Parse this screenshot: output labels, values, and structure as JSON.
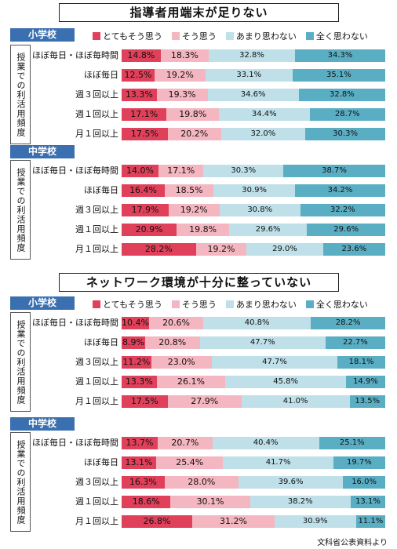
{
  "legend": {
    "labels": [
      "とてもそう思う",
      "そう思う",
      "あまり思わない",
      "全く思わない"
    ],
    "colors": [
      "#e0405a",
      "#f4b6c0",
      "#bfe0e8",
      "#5aaec4"
    ]
  },
  "vertical_label": "授業での利活用頻度",
  "footer": "文科省公表資料より",
  "chart_data": [
    {
      "type": "bar",
      "title": "指導者用端末が足りない",
      "school": "小学校",
      "categories": [
        "ほぼ毎日・ほぼ毎時間",
        "ほぼ毎日",
        "週３回以上",
        "週１回以上",
        "月１回以上"
      ],
      "series": [
        {
          "name": "とてもそう思う",
          "values": [
            14.8,
            12.5,
            13.3,
            17.1,
            17.5
          ]
        },
        {
          "name": "そう思う",
          "values": [
            18.3,
            19.2,
            19.3,
            19.8,
            20.2
          ]
        },
        {
          "name": "あまり思わない",
          "values": [
            32.8,
            33.1,
            34.6,
            34.4,
            32.0
          ]
        },
        {
          "name": "全く思わない",
          "values": [
            34.3,
            35.1,
            32.8,
            28.7,
            30.3
          ]
        }
      ]
    },
    {
      "type": "bar",
      "title": "",
      "school": "中学校",
      "categories": [
        "ほぼ毎日・ほぼ毎時間",
        "ほぼ毎日",
        "週３回以上",
        "週１回以上",
        "月１回以上"
      ],
      "series": [
        {
          "name": "とてもそう思う",
          "values": [
            14.0,
            16.4,
            17.9,
            20.9,
            28.2
          ]
        },
        {
          "name": "そう思う",
          "values": [
            17.1,
            18.5,
            19.2,
            19.8,
            19.2
          ]
        },
        {
          "name": "あまり思わない",
          "values": [
            30.3,
            30.9,
            30.8,
            29.6,
            29.0
          ]
        },
        {
          "name": "全く思わない",
          "values": [
            38.7,
            34.2,
            32.2,
            29.6,
            23.6
          ]
        }
      ]
    },
    {
      "type": "bar",
      "title": "ネットワーク環境が十分に整っていない",
      "school": "小学校",
      "categories": [
        "ほぼ毎日・ほぼ毎時間",
        "ほぼ毎日",
        "週３回以上",
        "週１回以上",
        "月１回以上"
      ],
      "series": [
        {
          "name": "とてもそう思う",
          "values": [
            10.4,
            8.9,
            11.2,
            13.3,
            17.5
          ]
        },
        {
          "name": "そう思う",
          "values": [
            20.6,
            20.8,
            23.0,
            26.1,
            27.9
          ]
        },
        {
          "name": "あまり思わない",
          "values": [
            40.8,
            47.7,
            47.7,
            45.8,
            41.0
          ]
        },
        {
          "name": "全く思わない",
          "values": [
            28.2,
            22.7,
            18.1,
            14.9,
            13.5
          ]
        }
      ]
    },
    {
      "type": "bar",
      "title": "",
      "school": "中学校",
      "categories": [
        "ほぼ毎日・ほぼ毎時間",
        "ほぼ毎日",
        "週３回以上",
        "週１回以上",
        "月１回以上"
      ],
      "series": [
        {
          "name": "とてもそう思う",
          "values": [
            13.7,
            13.1,
            16.3,
            18.6,
            26.8
          ]
        },
        {
          "name": "そう思う",
          "values": [
            20.7,
            25.4,
            28.0,
            30.1,
            31.2
          ]
        },
        {
          "name": "あまり思わない",
          "values": [
            40.4,
            41.7,
            39.6,
            38.2,
            30.9
          ]
        },
        {
          "name": "全く思わない",
          "values": [
            25.1,
            19.7,
            16.0,
            13.1,
            11.1
          ]
        }
      ]
    }
  ]
}
